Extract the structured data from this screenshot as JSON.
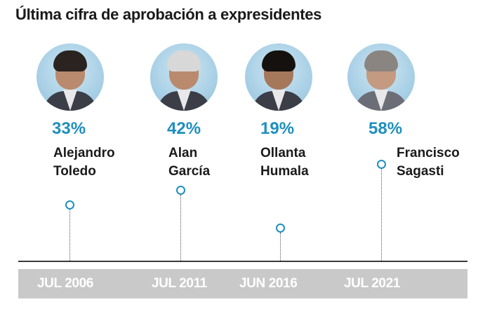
{
  "chart_data": {
    "type": "line",
    "title": "Última cifra de aprobación a expresidentes",
    "unit": "%",
    "points": [
      {
        "date": "JUL 2006",
        "name_line1": "Alejandro",
        "name_line2": "Toledo",
        "value": 33,
        "value_label": "33%"
      },
      {
        "date": "JUL 2011",
        "name_line1": "Alan",
        "name_line2": "García",
        "value": 42,
        "value_label": "42%"
      },
      {
        "date": "JUN 2016",
        "name_line1": "Ollanta",
        "name_line2": "Humala",
        "value": 19,
        "value_label": "19%"
      },
      {
        "date": "JUL 2021",
        "name_line1": "Francisco",
        "name_line2": "Sagasti",
        "value": 58,
        "value_label": "58%"
      }
    ]
  },
  "colors": {
    "accent": "#1f8fbf",
    "axis_band": "#c9c9c9",
    "text": "#1a1a1a"
  }
}
